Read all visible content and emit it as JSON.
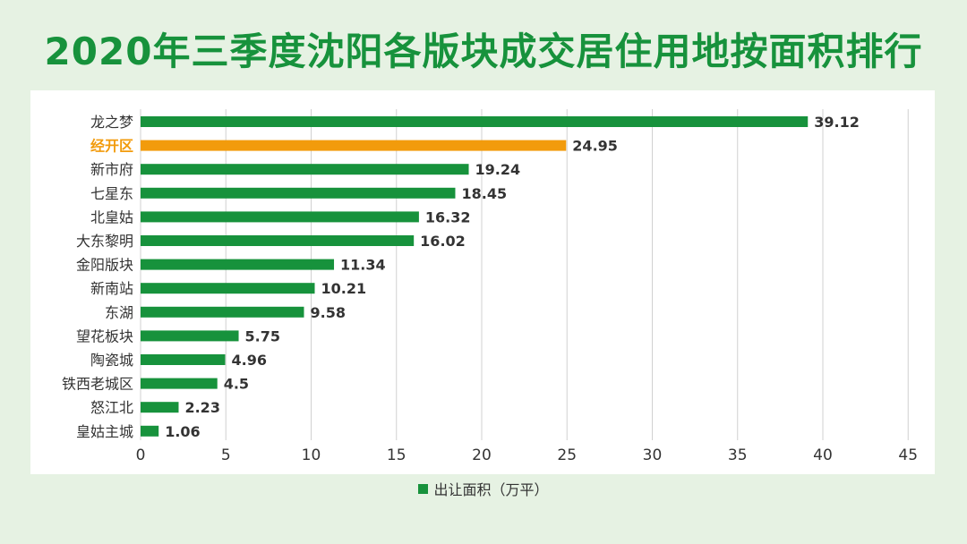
{
  "title": "2020年三季度沈阳各版块成交居住用地按面积排行",
  "colors": {
    "bar": "#17923c",
    "highlight": "#f29b0c",
    "title": "#17923c",
    "grid": "#d0d0d0",
    "label": "#333333",
    "highlight_label": "#f29b0c"
  },
  "chart_data": {
    "type": "bar",
    "orientation": "horizontal",
    "categories": [
      "龙之梦",
      "经开区",
      "新市府",
      "七星东",
      "北皇姑",
      "大东黎明",
      "金阳版块",
      "新南站",
      "东湖",
      "望花板块",
      "陶瓷城",
      "铁西老城区",
      "怒江北",
      "皇姑主城"
    ],
    "series": [
      {
        "name": "出让面积（万平）",
        "values": [
          39.12,
          24.95,
          19.24,
          18.45,
          16.32,
          16.02,
          11.34,
          10.21,
          9.58,
          5.75,
          4.96,
          4.5,
          2.23,
          1.06
        ]
      }
    ],
    "value_labels": [
      "39.12",
      "24.95",
      "19.24",
      "18.45",
      "16.32",
      "16.02",
      "11.34",
      "10.21",
      "9.58",
      "5.75",
      "4.96",
      "4.5",
      "2.23",
      "1.06"
    ],
    "highlight_category": "经开区",
    "xlim": [
      0,
      45
    ],
    "xticks": [
      0,
      5,
      10,
      15,
      20,
      25,
      30,
      35,
      40,
      45
    ],
    "xtick_labels": [
      "0",
      "5",
      "10",
      "15",
      "20",
      "25",
      "30",
      "35",
      "40",
      "45"
    ],
    "grid": true,
    "legend_position": "bottom"
  }
}
